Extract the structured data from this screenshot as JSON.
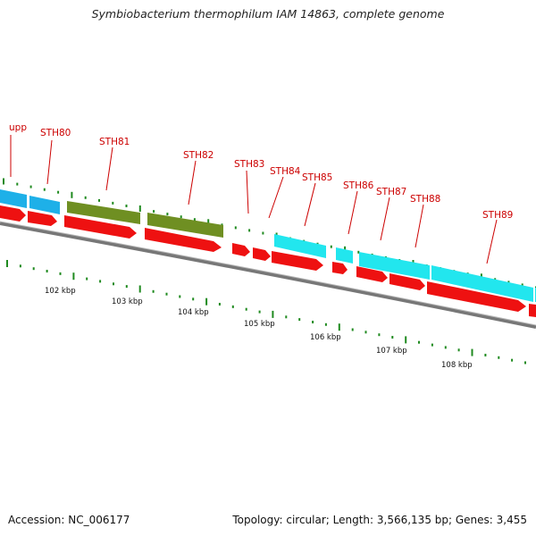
{
  "title": "Symbiobacterium thermophilum IAM 14863, complete genome",
  "footer": {
    "accession": "Accession: NC_006177",
    "summary": "Topology: circular; Length: 3,566,135 bp; Genes: 3,455"
  },
  "colors": {
    "backbone": "#7a7a7a",
    "tick": "#1f8a1f",
    "label": "#cc0000",
    "cds": "#ee1111",
    "feature_blue": "#1eb0e8",
    "feature_olive": "#6f8f22",
    "feature_cyan": "#22e6ee"
  },
  "genes": [
    {
      "label": "upp"
    },
    {
      "label": "STH80"
    },
    {
      "label": "STH81"
    },
    {
      "label": "STH82"
    },
    {
      "label": "STH83"
    },
    {
      "label": "STH84"
    },
    {
      "label": "STH85"
    },
    {
      "label": "STH86"
    },
    {
      "label": "STH87"
    },
    {
      "label": "STH88"
    },
    {
      "label": "STH89"
    }
  ],
  "scale_labels": [
    "102 kbp",
    "103 kbp",
    "104 kbp",
    "105 kbp",
    "106 kbp",
    "107 kbp",
    "108 kbp"
  ]
}
